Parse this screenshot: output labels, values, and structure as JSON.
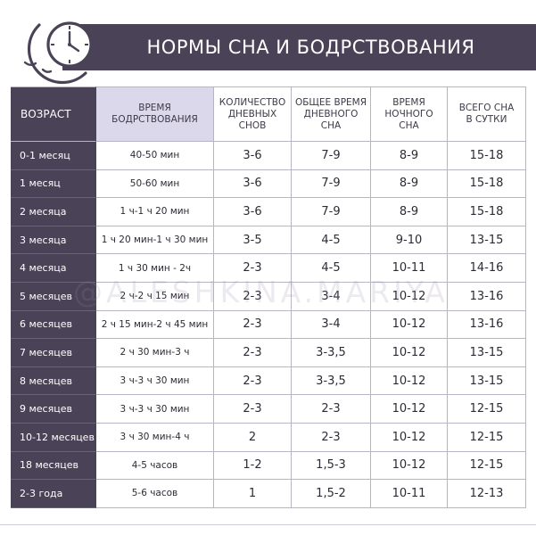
{
  "header": {
    "title": "НОРМЫ СНА И БОДРСТВОВАНИЯ"
  },
  "colors": {
    "header_dark": "#4a4256",
    "wake_header": "#dcd8ec",
    "border": "#b9b4c4"
  },
  "icons": {
    "logo": "moon-with-clock-icon"
  },
  "watermark": "@ALESHKINA.MARIYA",
  "table": {
    "columns": {
      "age": "ВОЗРАСТ",
      "wake": [
        "ВРЕМЯ",
        "БОДРСТВОВАНИЯ"
      ],
      "naps": [
        "КОЛИЧЕСТВО",
        "ДНЕВНЫХ",
        "СНОВ"
      ],
      "day_sleep": [
        "ОБЩЕЕ ВРЕМЯ",
        "ДНЕВНОГО",
        "СНА"
      ],
      "night_sleep": [
        "ВРЕМЯ",
        "НОЧНОГО",
        "СНА"
      ],
      "total_sleep": [
        "ВСЕГО СНА",
        "В СУТКИ"
      ]
    },
    "rows": [
      {
        "age": "0-1 месяц",
        "wake": "40-50 мин",
        "naps": "3-6",
        "day_sleep": "7-9",
        "night_sleep": "8-9",
        "total_sleep": "15-18"
      },
      {
        "age": "1 месяц",
        "wake": "50-60 мин",
        "naps": "3-6",
        "day_sleep": "7-9",
        "night_sleep": "8-9",
        "total_sleep": "15-18"
      },
      {
        "age": "2 месяца",
        "wake": "1 ч-1 ч 20 мин",
        "naps": "3-6",
        "day_sleep": "7-9",
        "night_sleep": "8-9",
        "total_sleep": "15-18"
      },
      {
        "age": "3 месяца",
        "wake": "1 ч 20 мин-1 ч 30 мин",
        "naps": "3-5",
        "day_sleep": "4-5",
        "night_sleep": "9-10",
        "total_sleep": "13-15"
      },
      {
        "age": "4 месяца",
        "wake": "1 ч 30 мин - 2ч",
        "naps": "2-3",
        "day_sleep": "4-5",
        "night_sleep": "10-11",
        "total_sleep": "14-16"
      },
      {
        "age": "5 месяцев",
        "wake": "2 ч-2 ч 15 мин",
        "naps": "2-3",
        "day_sleep": "3-4",
        "night_sleep": "10-12",
        "total_sleep": "13-16"
      },
      {
        "age": "6 месяцев",
        "wake": "2 ч 15 мин-2 ч 45 мин",
        "naps": "2-3",
        "day_sleep": "3-4",
        "night_sleep": "10-12",
        "total_sleep": "13-16"
      },
      {
        "age": "7 месяцев",
        "wake": "2 ч 30 мин-3 ч",
        "naps": "2-3",
        "day_sleep": "3-3,5",
        "night_sleep": "10-12",
        "total_sleep": "13-15"
      },
      {
        "age": "8 месяцев",
        "wake": "3 ч-3 ч 30 мин",
        "naps": "2-3",
        "day_sleep": "3-3,5",
        "night_sleep": "10-12",
        "total_sleep": "13-15"
      },
      {
        "age": "9 месяцев",
        "wake": "3 ч-3 ч 30 мин",
        "naps": "2-3",
        "day_sleep": "2-3",
        "night_sleep": "10-12",
        "total_sleep": "12-15"
      },
      {
        "age": "10-12 месяцев",
        "wake": "3 ч 30 мин-4 ч",
        "naps": "2",
        "day_sleep": "2-3",
        "night_sleep": "10-12",
        "total_sleep": "12-15"
      },
      {
        "age": "18 месяцев",
        "wake": "4-5 часов",
        "naps": "1-2",
        "day_sleep": "1,5-3",
        "night_sleep": "10-12",
        "total_sleep": "12-15"
      },
      {
        "age": "2-3 года",
        "wake": "5-6 часов",
        "naps": "1",
        "day_sleep": "1,5-2",
        "night_sleep": "10-11",
        "total_sleep": "12-13"
      }
    ]
  }
}
